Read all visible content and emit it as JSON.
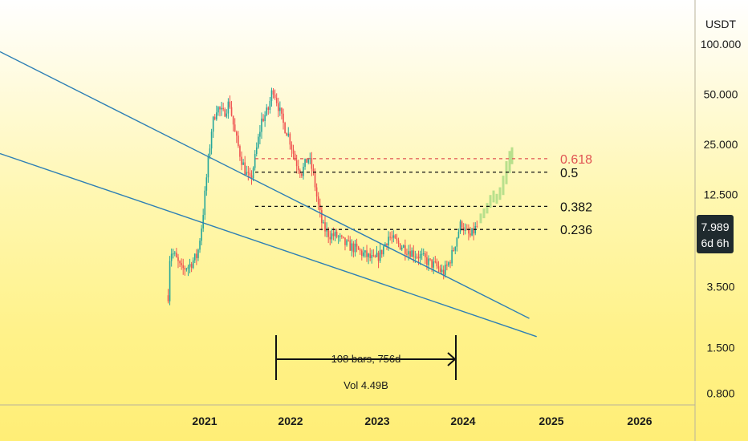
{
  "chart_data": {
    "type": "candlestick",
    "currency": "USDT",
    "y_scale": "log",
    "y_ticks": [
      "100.000",
      "50.000",
      "25.000",
      "12.500",
      "3.500",
      "1.500",
      "0.800"
    ],
    "y_tick_values": [
      100,
      50,
      25,
      12.5,
      3.5,
      1.5,
      0.8
    ],
    "x_ticks": [
      "2021",
      "2022",
      "2023",
      "2024",
      "2025",
      "2026"
    ],
    "price": {
      "value": "7.989",
      "countdown": "6d 6h",
      "color": "#1f2a2e"
    },
    "fib_levels": [
      {
        "label": "0.618",
        "price": 20.5,
        "color": "#e05252"
      },
      {
        "label": "0.5",
        "price": 17.0,
        "color": "#111111"
      },
      {
        "label": "0.382",
        "price": 10.6,
        "color": "#111111"
      },
      {
        "label": "0.236",
        "price": 7.7,
        "color": "#111111"
      }
    ],
    "measure": {
      "bars_label": "108 bars, 756d",
      "vol_label": "Vol 4.49B"
    },
    "trendlines": [
      {
        "from": [
          "2020-09",
          90.0
        ],
        "to": [
          "2024-10",
          2.25
        ],
        "color": "#2e7fb5"
      },
      {
        "from": [
          "2020-06",
          22.0
        ],
        "to": [
          "2024-11",
          1.75
        ],
        "color": "#2e7fb5"
      }
    ],
    "colors": {
      "up": "#26a69a",
      "down": "#ef5350",
      "projection": "#b8e08c",
      "trend": "#2e7fb5"
    }
  }
}
